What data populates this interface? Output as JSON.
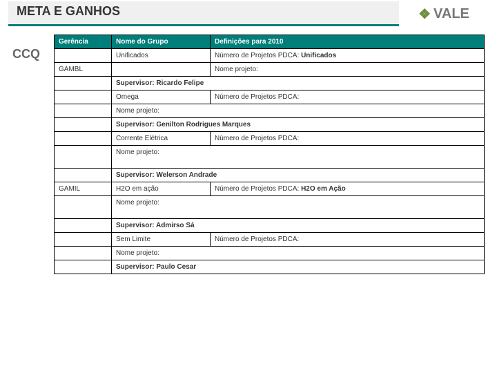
{
  "header": {
    "title": "META E GANHOS",
    "logo_text": "VALE",
    "logo_glyph": "❖"
  },
  "side_label": "CCQ",
  "table": {
    "headers": {
      "gerencia": "Gerência",
      "nome_grupo": "Nome do Grupo",
      "definicoes": "Definições para 2010"
    },
    "colors": {
      "header_bg": "#007e7a",
      "header_text": "#ffffff",
      "border": "#000000"
    },
    "rows": [
      {
        "gerencia": "",
        "nome": "Unificados",
        "def": "Número de Projetos PDCA: Unificados",
        "def_bold_suffix": "Unificados"
      },
      {
        "gerencia": "GAMBL",
        "nome": "",
        "def": "Nome projeto:"
      },
      {
        "span_def": "Supervisor: Ricardo Felipe",
        "bold": true
      },
      {
        "gerencia": "",
        "nome": "Omega",
        "def": "Número de Projetos PDCA:"
      },
      {
        "span_def": "Nome projeto:"
      },
      {
        "span_def": "Supervisor: Genilton Rodrigues Marques",
        "bold": true
      },
      {
        "gerencia": "",
        "nome": "Corrente Elétrica",
        "def": "Número de Projetos PDCA:"
      },
      {
        "span_def": "Nome projeto:",
        "tall": true
      },
      {
        "span_def": "Supervisor: Welerson Andrade",
        "bold": true
      },
      {
        "gerencia": "GAMIL",
        "nome": "H2O em ação",
        "def": "Número de Projetos PDCA: H2O em Ação",
        "def_bold_suffix": "H2O em Ação"
      },
      {
        "span_def": "Nome projeto:",
        "tall": true
      },
      {
        "span_def": "Supervisor: Admirso Sá",
        "bold": true
      },
      {
        "gerencia": "",
        "nome": "Sem Limite",
        "def": "Número de Projetos PDCA:"
      },
      {
        "span_def": "Nome projeto:"
      },
      {
        "span_def": "Supervisor: Paulo Cesar",
        "bold": true
      }
    ]
  }
}
